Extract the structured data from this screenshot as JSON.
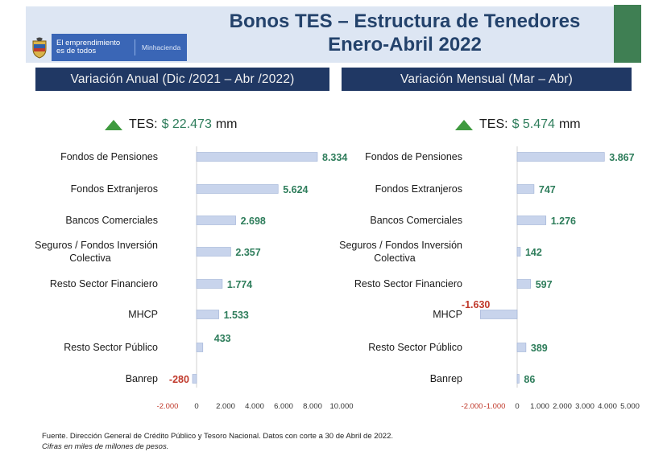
{
  "header": {
    "title_line1": "Bonos TES – Estructura de Tenedores",
    "title_line2": "Enero-Abril 2022",
    "logo_tagline": "El emprendimiento es de todos",
    "logo_ministry": "Minhacienda",
    "colors": {
      "band": "#dde6f3",
      "title": "#23426b",
      "accent_green": "#3f7f53",
      "logo_blue": "#3a66b6"
    }
  },
  "sections": {
    "left_title": "Variación Anual (Dic /2021 – Abr /2022)",
    "right_title": "Variación Mensual (Mar – Abr)"
  },
  "totals": {
    "left": {
      "label": "TES:",
      "value": "$ 22.473",
      "unit": "mm"
    },
    "right": {
      "label": "TES:",
      "value": "$ 5.474",
      "unit": "mm"
    }
  },
  "chart_data": [
    {
      "type": "bar",
      "orientation": "horizontal",
      "title": "Variación Anual (Dic /2021 – Abr /2022)",
      "categories": [
        "Fondos de Pensiones",
        "Fondos Extranjeros",
        "Bancos Comerciales",
        "Seguros / Fondos Inversión Colectiva",
        "Resto Sector Financiero",
        "MHCP",
        "Resto Sector Público",
        "Banrep"
      ],
      "category_lines": [
        [
          "Fondos de Pensiones"
        ],
        [
          "Fondos Extranjeros"
        ],
        [
          "Bancos Comerciales"
        ],
        [
          "Seguros / Fondos Inversión",
          "Colectiva"
        ],
        [
          "Resto Sector Financiero"
        ],
        [
          "MHCP"
        ],
        [
          "Resto Sector Público"
        ],
        [
          "Banrep"
        ]
      ],
      "values": [
        8334,
        5624,
        2698,
        2357,
        1774,
        1533,
        433,
        -280
      ],
      "value_labels": [
        "8.334",
        "5.624",
        "2.698",
        "2.357",
        "1.774",
        "1.533",
        "433",
        "-280"
      ],
      "xlim": [
        -2000,
        10000
      ],
      "xticks": [
        -2000,
        0,
        2000,
        4000,
        6000,
        8000,
        10000
      ],
      "xtick_labels": [
        "-2.000",
        "0",
        "2.000",
        "4.000",
        "6.000",
        "8.000",
        "10.000"
      ],
      "colors": {
        "bar": "#c8d4ec",
        "positive_label": "#2e7d5b",
        "negative_label": "#c0392b",
        "negative_tick": "#c0392b"
      }
    },
    {
      "type": "bar",
      "orientation": "horizontal",
      "title": "Variación Mensual (Mar – Abr)",
      "categories": [
        "Fondos de Pensiones",
        "Fondos Extranjeros",
        "Bancos Comerciales",
        "Seguros / Fondos Inversión Colectiva",
        "Resto Sector Financiero",
        "MHCP",
        "Resto Sector Público",
        "Banrep"
      ],
      "category_lines": [
        [
          "Fondos de Pensiones"
        ],
        [
          "Fondos Extranjeros"
        ],
        [
          "Bancos Comerciales"
        ],
        [
          "Seguros / Fondos Inversión",
          "Colectiva"
        ],
        [
          "Resto Sector Financiero"
        ],
        [
          "MHCP"
        ],
        [
          "Resto Sector Público"
        ],
        [
          "Banrep"
        ]
      ],
      "values": [
        3867,
        747,
        1276,
        142,
        597,
        -1630,
        389,
        86
      ],
      "value_labels": [
        "3.867",
        "747",
        "1.276",
        "142",
        "597",
        "-1.630",
        "389",
        "86"
      ],
      "xlim": [
        -2000,
        5000
      ],
      "xticks": [
        -2000,
        -1000,
        0,
        1000,
        2000,
        3000,
        4000,
        5000
      ],
      "xtick_labels": [
        "-2.000",
        "-1.000",
        "0",
        "1.000",
        "2.000",
        "3.000",
        "4.000",
        "5.000"
      ],
      "colors": {
        "bar": "#c8d4ec",
        "positive_label": "#2e7d5b",
        "negative_label": "#c0392b",
        "negative_tick": "#c0392b"
      }
    }
  ],
  "footnote": {
    "line1": "Fuente. Dirección General de Crédito Público y Tesoro Nacional. Datos con corte a 30 de Abril de 2022.",
    "line2": "Cifras en miles de millones de pesos."
  }
}
